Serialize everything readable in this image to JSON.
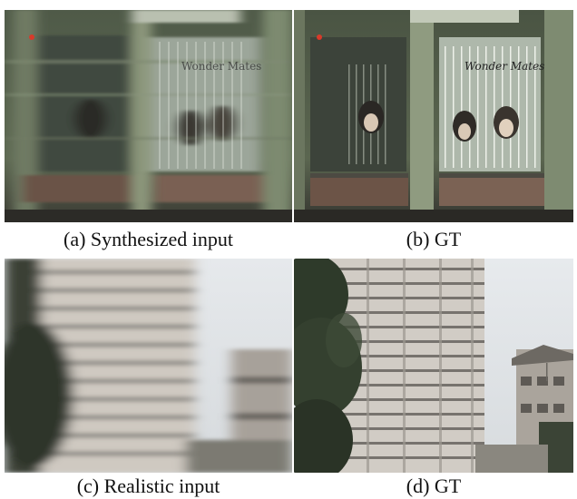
{
  "figure": {
    "captions": {
      "a": "(a) Synthesized input",
      "b": "(b) GT",
      "c": "(c) Realistic input",
      "d": "(d) GT"
    },
    "poster_text": "Wonder Mates",
    "colors": {
      "background": "#ffffff",
      "wall_green": "#5d6d57",
      "pillar": "#8f9c7f",
      "sky": "#dfe3e6",
      "building": "#c9c6c0",
      "tree": "#2f3a2a"
    }
  }
}
